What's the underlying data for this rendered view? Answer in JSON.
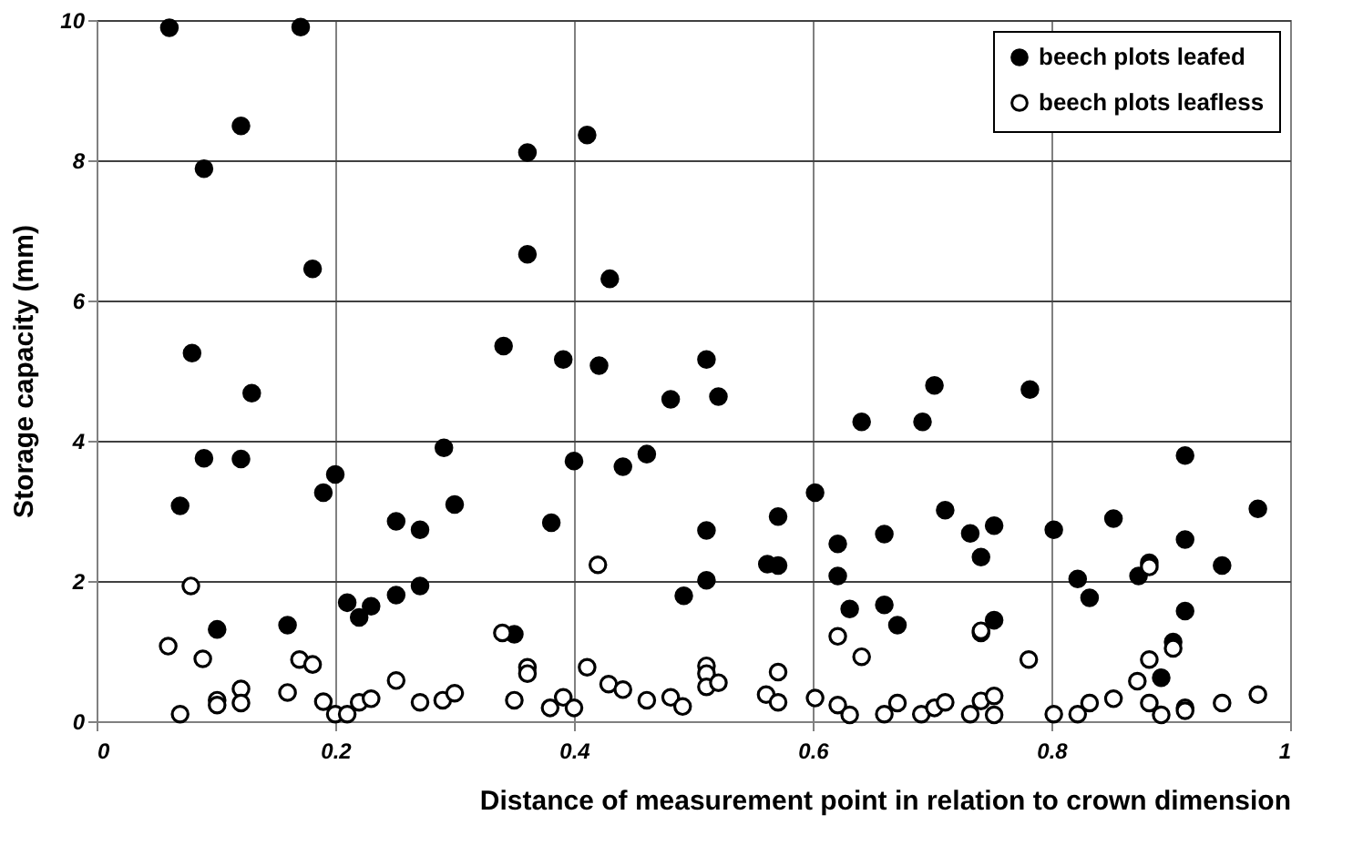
{
  "chart_data": {
    "type": "scatter",
    "xlabel": "Distance of measurement point in relation to crown dimension",
    "ylabel": "Storage capacity (mm)",
    "xlim": [
      0,
      1
    ],
    "xticks": [
      0,
      0.2,
      0.4,
      0.6,
      0.8,
      1
    ],
    "ylim": [
      0,
      10
    ],
    "yticks": [
      0,
      2,
      4,
      6,
      8,
      10
    ],
    "grid": true,
    "legend": "top right",
    "marker": "circle",
    "series": [
      {
        "name": "beech plots leafed",
        "color": "#000000",
        "x": [
          0.061,
          0.171,
          0.121,
          0.09,
          0.181,
          0.08,
          0.13,
          0.09,
          0.121,
          0.2,
          0.19,
          0.291,
          0.07,
          0.3,
          0.251,
          0.271,
          0.271,
          0.251,
          0.21,
          0.23,
          0.22,
          0.101,
          0.16,
          0.361,
          0.411,
          0.361,
          0.43,
          0.341,
          0.391,
          0.421,
          0.511,
          0.481,
          0.521,
          0.641,
          0.4,
          0.441,
          0.461,
          0.602,
          0.381,
          0.511,
          0.571,
          0.621,
          0.66,
          0.562,
          0.571,
          0.621,
          0.511,
          0.492,
          0.631,
          0.66,
          0.35,
          0.702,
          0.692,
          0.782,
          0.711,
          0.732,
          0.752,
          0.741,
          0.802,
          0.852,
          0.912,
          0.912,
          0.973,
          0.943,
          0.822,
          0.882,
          0.873,
          0.832,
          0.671,
          0.741,
          0.752,
          0.912,
          0.902,
          0.892
        ],
        "values": [
          9.89,
          9.9,
          8.49,
          7.88,
          6.45,
          5.25,
          4.68,
          3.75,
          3.74,
          3.52,
          3.26,
          3.9,
          3.07,
          3.09,
          2.85,
          2.73,
          1.93,
          1.8,
          1.69,
          1.64,
          1.48,
          1.31,
          1.37,
          8.11,
          8.36,
          6.66,
          6.31,
          5.35,
          5.16,
          5.07,
          5.16,
          4.59,
          4.63,
          4.27,
          3.71,
          3.63,
          3.81,
          3.26,
          2.83,
          2.72,
          2.92,
          2.53,
          2.67,
          2.24,
          2.22,
          2.07,
          2.01,
          1.79,
          1.6,
          1.66,
          1.24,
          4.79,
          4.27,
          4.73,
          3.01,
          2.68,
          2.79,
          2.34,
          2.73,
          2.89,
          3.79,
          2.59,
          3.03,
          2.22,
          2.03,
          2.26,
          2.07,
          1.76,
          1.37,
          1.26,
          1.44,
          1.57,
          1.13,
          0.62
        ]
      },
      {
        "name": "beech plots leafless",
        "color": "#000000",
        "x": [
          0.079,
          0.06,
          0.089,
          0.17,
          0.181,
          0.07,
          0.101,
          0.101,
          0.121,
          0.121,
          0.16,
          0.19,
          0.2,
          0.21,
          0.22,
          0.23,
          0.251,
          0.271,
          0.29,
          0.3,
          0.42,
          0.34,
          0.361,
          0.361,
          0.35,
          0.38,
          0.391,
          0.4,
          0.411,
          0.429,
          0.441,
          0.461,
          0.481,
          0.491,
          0.511,
          0.511,
          0.511,
          0.521,
          0.561,
          0.571,
          0.571,
          0.602,
          0.621,
          0.621,
          0.641,
          0.631,
          0.66,
          0.781,
          0.882,
          0.872,
          0.902,
          0.882,
          0.741,
          0.671,
          0.691,
          0.702,
          0.711,
          0.732,
          0.741,
          0.752,
          0.752,
          0.802,
          0.822,
          0.832,
          0.852,
          0.882,
          0.892,
          0.912,
          0.912,
          0.943,
          0.973
        ],
        "values": [
          1.93,
          1.07,
          0.89,
          0.88,
          0.81,
          0.1,
          0.3,
          0.23,
          0.46,
          0.26,
          0.41,
          0.28,
          0.1,
          0.1,
          0.27,
          0.32,
          0.58,
          0.27,
          0.3,
          0.4,
          2.23,
          1.26,
          0.77,
          0.68,
          0.3,
          0.19,
          0.34,
          0.19,
          0.77,
          0.53,
          0.45,
          0.3,
          0.34,
          0.21,
          0.79,
          0.68,
          0.49,
          0.55,
          0.38,
          0.7,
          0.27,
          0.33,
          1.21,
          0.23,
          0.92,
          0.09,
          0.1,
          0.88,
          0.88,
          0.57,
          1.04,
          2.2,
          1.29,
          0.26,
          0.1,
          0.19,
          0.27,
          0.1,
          0.29,
          0.36,
          0.09,
          0.1,
          0.1,
          0.26,
          0.32,
          0.26,
          0.09,
          0.19,
          0.15,
          0.26,
          0.38
        ]
      }
    ]
  }
}
